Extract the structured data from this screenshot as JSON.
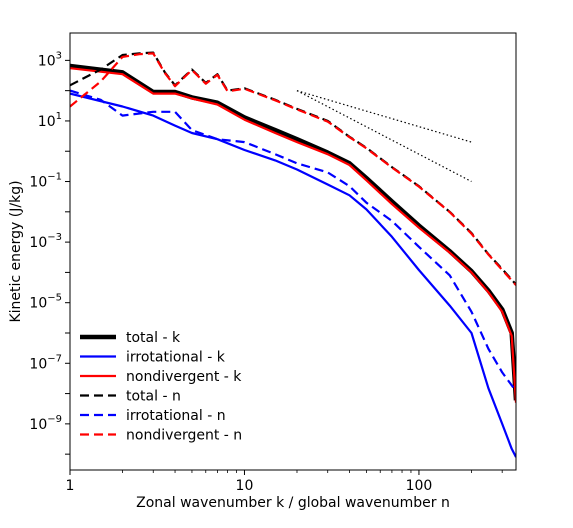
{
  "chart_data": {
    "type": "line",
    "xscale": "log",
    "yscale": "log",
    "xlabel": "Zonal wavenumber k / global wavenumber n",
    "ylabel": "Kinetic energy (J/kg)",
    "xlim": [
      1,
      360
    ],
    "ylim": [
      3e-11,
      8000
    ],
    "x_ticks": [
      {
        "value": 1,
        "label": "1"
      },
      {
        "value": 10,
        "label": "10"
      },
      {
        "value": 100,
        "label": "100"
      }
    ],
    "y_ticks": [
      {
        "value": 1000.0,
        "base": "10",
        "exp": "3"
      },
      {
        "value": 10.0,
        "base": "10",
        "exp": "1"
      },
      {
        "value": 0.1,
        "base": "10",
        "exp": "−1"
      },
      {
        "value": 0.001,
        "base": "10",
        "exp": "−3"
      },
      {
        "value": 1e-05,
        "base": "10",
        "exp": "−5"
      },
      {
        "value": 1e-07,
        "base": "10",
        "exp": "−7"
      },
      {
        "value": 1e-09,
        "base": "10",
        "exp": "−9"
      }
    ],
    "legend_position": "lower-left",
    "series": [
      {
        "name": "total - k",
        "color": "#000000",
        "dash": "solid",
        "width": 4.5,
        "x": [
          1,
          2,
          3,
          4,
          5,
          7,
          10,
          15,
          20,
          30,
          40,
          50,
          70,
          100,
          150,
          200,
          250,
          300,
          340,
          360
        ],
        "y": [
          650,
          400,
          90,
          90,
          60,
          40,
          13,
          5,
          2.5,
          0.9,
          0.4,
          0.13,
          0.022,
          0.0035,
          0.0005,
          0.00011,
          2.5e-05,
          6e-06,
          1e-06,
          6e-09
        ]
      },
      {
        "name": "irrotational - k",
        "color": "#0000ff",
        "dash": "solid",
        "width": 2.2,
        "x": [
          1,
          2,
          3,
          4,
          5,
          7,
          10,
          15,
          20,
          30,
          40,
          50,
          70,
          100,
          150,
          200,
          250,
          300,
          340,
          360
        ],
        "y": [
          80,
          30,
          15,
          7,
          4,
          2.5,
          1.1,
          0.5,
          0.25,
          0.08,
          0.035,
          0.012,
          0.0015,
          0.00012,
          8e-06,
          1e-06,
          1.5e-08,
          1e-09,
          1.5e-10,
          8e-11
        ]
      },
      {
        "name": "nondivergent - k",
        "color": "#ff0000",
        "dash": "solid",
        "width": 2.2,
        "x": [
          1,
          2,
          3,
          4,
          5,
          7,
          10,
          15,
          20,
          30,
          40,
          50,
          70,
          100,
          150,
          200,
          250,
          300,
          340,
          360
        ],
        "y": [
          550,
          350,
          80,
          80,
          55,
          35,
          11,
          4,
          2,
          0.8,
          0.35,
          0.11,
          0.018,
          0.003,
          0.00045,
          0.0001,
          2.2e-05,
          5e-06,
          8e-07,
          5e-09
        ]
      },
      {
        "name": "total - n",
        "color": "#000000",
        "dash": "dashed",
        "width": 2.2,
        "x": [
          1,
          1.5,
          2,
          2.5,
          3,
          3.5,
          4,
          5,
          6,
          7,
          8,
          10,
          15,
          20,
          30,
          40,
          50,
          70,
          100,
          150,
          200,
          250,
          300,
          360
        ],
        "y": [
          150,
          500,
          1500,
          1700,
          1800,
          400,
          150,
          500,
          180,
          350,
          100,
          120,
          50,
          25,
          10,
          3,
          1.3,
          0.3,
          0.07,
          0.01,
          0.002,
          0.0004,
          0.00013,
          4e-05
        ]
      },
      {
        "name": "irrotational - n",
        "color": "#0000ff",
        "dash": "dashed",
        "width": 2.2,
        "x": [
          1,
          1.5,
          2,
          3,
          4,
          5,
          7,
          10,
          15,
          20,
          30,
          40,
          50,
          70,
          100,
          150,
          200,
          250,
          300,
          360
        ],
        "y": [
          100,
          50,
          15,
          20,
          20,
          5,
          2.5,
          2,
          0.8,
          0.4,
          0.2,
          0.07,
          0.02,
          0.005,
          0.0007,
          8e-05,
          5e-06,
          3e-07,
          5e-08,
          1.2e-08
        ]
      },
      {
        "name": "nondivergent - n",
        "color": "#ff0000",
        "dash": "dashed",
        "width": 2.2,
        "x": [
          1,
          1.5,
          2,
          2.5,
          3,
          3.5,
          4,
          5,
          6,
          7,
          8,
          10,
          15,
          20,
          30,
          40,
          50,
          70,
          100,
          150,
          200,
          250,
          300,
          360
        ],
        "y": [
          30,
          200,
          1300,
          1600,
          1700,
          380,
          140,
          480,
          170,
          330,
          95,
          115,
          48,
          24,
          9.5,
          2.9,
          1.25,
          0.29,
          0.068,
          0.0098,
          0.0019,
          0.00039,
          0.00012,
          3.8e-05
        ]
      }
    ],
    "reference_lines": [
      {
        "style": "dotted",
        "color": "#000000",
        "x": [
          20,
          200
        ],
        "y": [
          100,
          2
        ]
      },
      {
        "style": "dotted",
        "color": "#000000",
        "x": [
          20,
          200
        ],
        "y": [
          100,
          0.1
        ]
      }
    ]
  }
}
